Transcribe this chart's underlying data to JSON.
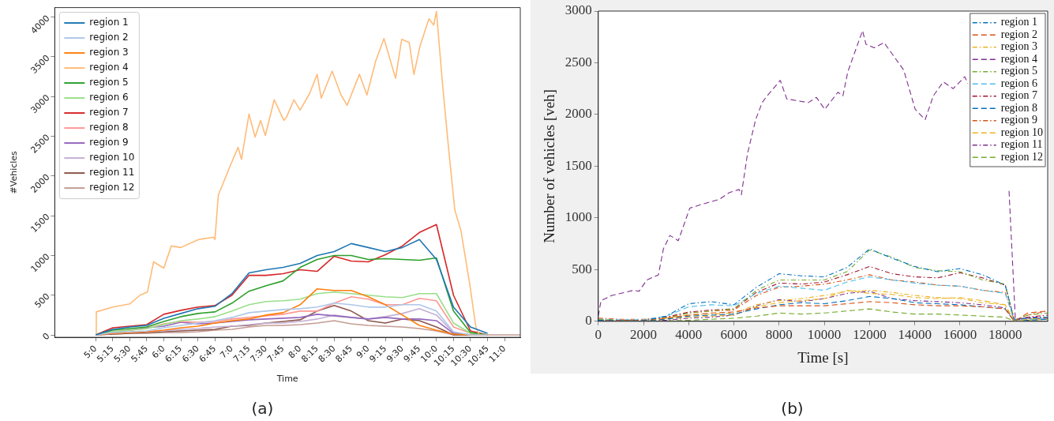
{
  "chart_data": [
    {
      "type": "line",
      "xlabel": "Time",
      "ylabel": "#Vehicles",
      "annotations": [
        "(a)"
      ],
      "legend": "top left",
      "x": [
        5,
        5.25,
        5.5,
        5.75,
        6,
        6.25,
        6.5,
        6.75,
        7,
        7.25,
        7.5,
        7.75,
        8,
        8.25,
        8.5,
        8.75,
        9,
        9.25,
        9.5,
        9.75,
        10,
        10.25,
        10.5,
        10.75,
        11,
        11.23
      ],
      "xlim": [
        4.4,
        11.23
      ],
      "ylim": [
        -30,
        4120
      ],
      "xticks": [
        {
          "value": 5,
          "label": "5:0"
        },
        {
          "value": 5.25,
          "label": "5:15"
        },
        {
          "value": 5.5,
          "label": "5:30"
        },
        {
          "value": 5.75,
          "label": "5:45"
        },
        {
          "value": 6,
          "label": "6:0"
        },
        {
          "value": 6.25,
          "label": "6:15"
        },
        {
          "value": 6.5,
          "label": "6:30"
        },
        {
          "value": 6.75,
          "label": "6:45"
        },
        {
          "value": 7,
          "label": "7:0"
        },
        {
          "value": 7.25,
          "label": "7:15"
        },
        {
          "value": 7.5,
          "label": "7:30"
        },
        {
          "value": 7.75,
          "label": "7:45"
        },
        {
          "value": 8,
          "label": "8:0"
        },
        {
          "value": 8.25,
          "label": "8:15"
        },
        {
          "value": 8.5,
          "label": "8:30"
        },
        {
          "value": 8.75,
          "label": "8:45"
        },
        {
          "value": 9,
          "label": "9:0"
        },
        {
          "value": 9.25,
          "label": "9:15"
        },
        {
          "value": 9.5,
          "label": "9:30"
        },
        {
          "value": 9.75,
          "label": "9:45"
        },
        {
          "value": 10,
          "label": "10:0"
        },
        {
          "value": 10.25,
          "label": "10:15"
        },
        {
          "value": 10.5,
          "label": "10:30"
        },
        {
          "value": 10.75,
          "label": "10:45"
        },
        {
          "value": 11,
          "label": "11:0"
        }
      ],
      "yticks": [
        0,
        500,
        1000,
        1500,
        2000,
        2500,
        3000,
        3500,
        4000
      ],
      "series": [
        {
          "name": "region 1",
          "color": "#1f77b4",
          "values": [
            0,
            70,
            100,
            120,
            210,
            270,
            330,
            360,
            520,
            780,
            820,
            850,
            900,
            1000,
            1050,
            1150,
            1100,
            1050,
            1100,
            1200,
            950,
            350,
            100,
            20,
            null,
            null
          ]
        },
        {
          "name": "region 2",
          "color": "#aec7e8",
          "values": [
            0,
            30,
            40,
            50,
            90,
            120,
            150,
            180,
            220,
            280,
            300,
            320,
            330,
            350,
            400,
            380,
            350,
            350,
            380,
            380,
            300,
            40,
            0,
            0,
            null,
            null
          ]
        },
        {
          "name": "region 3",
          "color": "#ff7f0e",
          "values": [
            0,
            20,
            30,
            40,
            60,
            90,
            110,
            150,
            180,
            200,
            250,
            280,
            380,
            580,
            560,
            560,
            480,
            380,
            250,
            120,
            60,
            10,
            0,
            0,
            null,
            null
          ]
        },
        {
          "name": "region 4",
          "color": "#ffbb78",
          "x": [
            5,
            5.01,
            5.25,
            5.5,
            5.65,
            5.76,
            5.85,
            6,
            6.11,
            6.25,
            6.51,
            6.73,
            6.75,
            6.8,
            6.98,
            7.09,
            7.14,
            7.25,
            7.34,
            7.42,
            7.49,
            7.62,
            7.76,
            7.8,
            7.91,
            8,
            8.14,
            8.25,
            8.31,
            8.47,
            8.6,
            8.69,
            8.87,
            8.98,
            9.11,
            9.23,
            9.4,
            9.49,
            9.6,
            9.67,
            9.76,
            9.89,
            9.96,
            10,
            10.09,
            10.18,
            10.27,
            10.36,
            10.49,
            10.58,
            10.63
          ],
          "values": [
            0,
            290,
            350,
            390,
            500,
            540,
            920,
            840,
            1120,
            1100,
            1200,
            1230,
            1200,
            1760,
            2140,
            2360,
            2210,
            2780,
            2490,
            2700,
            2510,
            2960,
            2700,
            2740,
            2960,
            2830,
            3040,
            3280,
            2980,
            3320,
            3020,
            2890,
            3280,
            3020,
            3450,
            3730,
            3230,
            3720,
            3680,
            3280,
            3640,
            3980,
            3900,
            4070,
            3150,
            2330,
            1570,
            1310,
            630,
            90,
            0
          ]
        },
        {
          "name": "region 5",
          "color": "#2ca02c",
          "values": [
            0,
            60,
            80,
            100,
            170,
            230,
            270,
            290,
            400,
            550,
            620,
            680,
            850,
            950,
            1000,
            1000,
            950,
            960,
            950,
            940,
            970,
            300,
            30,
            0,
            null,
            null
          ]
        },
        {
          "name": "region 6",
          "color": "#98df8a",
          "values": [
            0,
            40,
            60,
            80,
            130,
            180,
            200,
            230,
            300,
            380,
            420,
            430,
            450,
            520,
            540,
            520,
            500,
            480,
            470,
            520,
            520,
            150,
            20,
            0,
            null,
            null
          ]
        },
        {
          "name": "region 7",
          "color": "#d62728",
          "values": [
            0,
            90,
            110,
            130,
            260,
            310,
            350,
            370,
            500,
            750,
            750,
            770,
            820,
            800,
            990,
            930,
            920,
            1010,
            1120,
            1290,
            1390,
            500,
            50,
            0,
            null,
            null
          ]
        },
        {
          "name": "region 8",
          "color": "#ff9896",
          "values": [
            0,
            40,
            60,
            80,
            140,
            170,
            160,
            170,
            200,
            220,
            240,
            260,
            300,
            300,
            400,
            480,
            450,
            380,
            380,
            460,
            430,
            100,
            20,
            0,
            null,
            null
          ]
        },
        {
          "name": "region 9",
          "color": "#9467bd",
          "values": [
            0,
            30,
            60,
            90,
            110,
            160,
            140,
            150,
            170,
            190,
            200,
            210,
            220,
            260,
            240,
            220,
            200,
            220,
            200,
            200,
            180,
            20,
            0,
            0,
            null,
            null
          ]
        },
        {
          "name": "region 10",
          "color": "#c5b0d5",
          "values": [
            0,
            20,
            30,
            40,
            50,
            70,
            80,
            100,
            110,
            130,
            150,
            150,
            170,
            200,
            250,
            220,
            200,
            230,
            270,
            330,
            250,
            30,
            0,
            0,
            null,
            null
          ]
        },
        {
          "name": "region 11",
          "color": "#8c564b",
          "values": [
            0,
            10,
            20,
            30,
            40,
            50,
            60,
            70,
            110,
            120,
            150,
            170,
            190,
            300,
            370,
            300,
            180,
            150,
            200,
            180,
            100,
            0,
            0,
            0,
            null,
            null
          ]
        },
        {
          "name": "region 12",
          "color": "#c49c94",
          "values": [
            0,
            10,
            20,
            20,
            30,
            30,
            40,
            60,
            70,
            100,
            120,
            120,
            130,
            150,
            180,
            140,
            120,
            110,
            100,
            80,
            50,
            0,
            0,
            0,
            0,
            0
          ]
        }
      ]
    },
    {
      "type": "line",
      "xlabel": "Time [s]",
      "ylabel": "Number of vehicles [veh]",
      "annotations": [
        "(b)"
      ],
      "legend": "top right",
      "x": [
        0,
        1000,
        2000,
        3000,
        4000,
        5000,
        6000,
        7000,
        8000,
        9000,
        10000,
        11000,
        12000,
        13000,
        14000,
        15000,
        16000,
        17000,
        18000,
        18400,
        19000,
        19880
      ],
      "xlim": [
        0,
        19880
      ],
      "ylim": [
        0,
        3000
      ],
      "xticks": [
        0,
        2000,
        4000,
        6000,
        8000,
        10000,
        12000,
        14000,
        16000,
        18000
      ],
      "yticks": [
        0,
        500,
        1000,
        1500,
        2000,
        2500,
        3000
      ],
      "series": [
        {
          "name": "region 1",
          "color": "#0072bd",
          "line_style": "dashdot",
          "values": [
            10,
            5,
            5,
            50,
            170,
            190,
            160,
            330,
            460,
            440,
            430,
            520,
            700,
            610,
            530,
            480,
            510,
            450,
            350,
            20,
            30,
            40
          ]
        },
        {
          "name": "region 2",
          "color": "#d95319",
          "line_style": "dashed",
          "values": [
            10,
            10,
            10,
            30,
            60,
            80,
            90,
            130,
            150,
            150,
            150,
            170,
            190,
            180,
            160,
            150,
            150,
            140,
            120,
            0,
            80,
            100
          ]
        },
        {
          "name": "region 3",
          "color": "#edb120",
          "line_style": "dashdot",
          "values": [
            10,
            10,
            10,
            30,
            60,
            70,
            80,
            160,
            200,
            220,
            250,
            290,
            300,
            280,
            250,
            230,
            220,
            180,
            160,
            0,
            20,
            40
          ]
        },
        {
          "name": "region 4",
          "color": "#7e2f8e",
          "line_style": "dashed",
          "x": [
            0,
            120,
            600,
            1570,
            1800,
            2150,
            2660,
            2880,
            3170,
            3540,
            4050,
            4560,
            5360,
            5800,
            6230,
            6330,
            6600,
            6960,
            7250,
            7470,
            8050,
            8340,
            9290,
            9650,
            10020,
            10600,
            10820,
            11040,
            11690,
            11840,
            12200,
            12640,
            13510,
            14020,
            14460,
            14820,
            15260,
            15700,
            16210,
            16350,
            17200,
            18170,
            18450,
            19000,
            19880
          ],
          "values": [
            50,
            200,
            250,
            300,
            290,
            400,
            450,
            700,
            830,
            780,
            1095,
            1130,
            1180,
            1245,
            1275,
            1225,
            1620,
            1950,
            2115,
            2180,
            2330,
            2150,
            2115,
            2165,
            2050,
            2215,
            2180,
            2415,
            2810,
            2680,
            2645,
            2695,
            2430,
            2050,
            1950,
            2180,
            2315,
            2250,
            2365,
            2300,
            null,
            1260,
            20,
            30,
            30
          ]
        },
        {
          "name": "region 5",
          "color": "#77ac30",
          "line_style": "dashdot",
          "values": [
            20,
            10,
            10,
            30,
            80,
            100,
            120,
            300,
            400,
            400,
            400,
            480,
            690,
            620,
            520,
            490,
            480,
            400,
            360,
            10,
            60,
            80
          ]
        },
        {
          "name": "region 6",
          "color": "#4dbeee",
          "line_style": "dashed",
          "values": [
            20,
            15,
            15,
            50,
            140,
            160,
            150,
            270,
            340,
            320,
            300,
            380,
            430,
            400,
            370,
            350,
            340,
            300,
            270,
            10,
            20,
            30
          ]
        },
        {
          "name": "region 7",
          "color": "#a2142f",
          "line_style": "dashdot",
          "values": [
            10,
            10,
            10,
            40,
            90,
            110,
            120,
            280,
            370,
            360,
            380,
            450,
            530,
            460,
            430,
            420,
            470,
            420,
            350,
            10,
            40,
            60
          ]
        },
        {
          "name": "region 8",
          "color": "#0072bd",
          "line_style": "dashed",
          "values": [
            5,
            5,
            5,
            20,
            50,
            60,
            70,
            120,
            160,
            180,
            170,
            200,
            240,
            220,
            180,
            170,
            160,
            140,
            120,
            0,
            10,
            20
          ]
        },
        {
          "name": "region 9",
          "color": "#d95319",
          "line_style": "dashdot",
          "values": [
            30,
            20,
            20,
            40,
            80,
            100,
            110,
            250,
            330,
            340,
            360,
            400,
            450,
            400,
            380,
            350,
            340,
            300,
            280,
            10,
            60,
            100
          ]
        },
        {
          "name": "region 10",
          "color": "#edb120",
          "line_style": "dashed",
          "values": [
            10,
            5,
            5,
            20,
            40,
            50,
            60,
            140,
            180,
            200,
            220,
            300,
            270,
            260,
            230,
            220,
            230,
            200,
            160,
            0,
            10,
            20
          ]
        },
        {
          "name": "region 11",
          "color": "#7e2f8e",
          "line_style": "dashdot",
          "values": [
            5,
            5,
            5,
            10,
            30,
            40,
            60,
            150,
            210,
            190,
            220,
            270,
            290,
            220,
            200,
            190,
            180,
            160,
            130,
            0,
            40,
            40
          ]
        },
        {
          "name": "region 12",
          "color": "#77ac30",
          "line_style": "dashed",
          "values": [
            5,
            5,
            5,
            5,
            10,
            20,
            30,
            50,
            80,
            70,
            80,
            100,
            120,
            90,
            70,
            70,
            60,
            50,
            40,
            0,
            20,
            20
          ]
        }
      ]
    }
  ]
}
